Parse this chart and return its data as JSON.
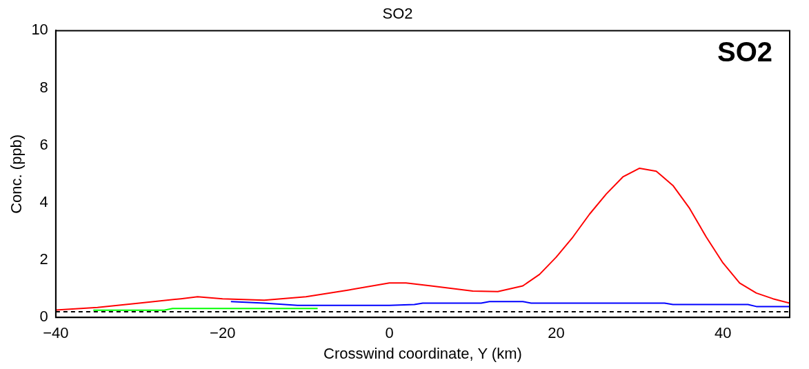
{
  "chart_data": {
    "type": "line",
    "title": "SO2",
    "xlabel": "Crosswind coordinate, Y (km)",
    "ylabel": "Conc. (ppb)",
    "annotations": [
      "SO2"
    ],
    "xlim": [
      -40,
      48
    ],
    "xticks": [
      -40,
      -20,
      0,
      20,
      40
    ],
    "ylim": [
      0,
      10
    ],
    "yticks": [
      0,
      2,
      4,
      6,
      8,
      10
    ],
    "grid": false,
    "legend": false,
    "marker": "none",
    "ref_lines": [
      {
        "axis": "y",
        "value": 0.2,
        "color": "#000000",
        "line_style": "dashed"
      }
    ],
    "series": [
      {
        "color": "#ff0000",
        "x": [
          -40,
          -35,
          -30,
          -25,
          -23,
          -20,
          -15,
          -10,
          -5,
          0,
          2,
          5,
          10,
          13,
          16,
          18,
          20,
          22,
          24,
          26,
          28,
          30,
          32,
          34,
          36,
          38,
          40,
          42,
          44,
          46,
          48
        ],
        "values": [
          0.26,
          0.35,
          0.5,
          0.65,
          0.72,
          0.65,
          0.6,
          0.72,
          0.95,
          1.2,
          1.2,
          1.1,
          0.92,
          0.9,
          1.1,
          1.5,
          2.1,
          2.8,
          3.6,
          4.3,
          4.9,
          5.2,
          5.1,
          4.6,
          3.8,
          2.8,
          1.9,
          1.2,
          0.85,
          0.65,
          0.5
        ]
      },
      {
        "color": "#0000ff",
        "x": [
          -19,
          -15,
          -11,
          0,
          3,
          4,
          11,
          12,
          16,
          17,
          33,
          34,
          43,
          44,
          48
        ],
        "values": [
          0.55,
          0.5,
          0.42,
          0.42,
          0.45,
          0.5,
          0.5,
          0.55,
          0.55,
          0.5,
          0.5,
          0.45,
          0.45,
          0.38,
          0.38
        ]
      },
      {
        "color": "#00ff00",
        "x": [
          -35.5,
          -27,
          -26,
          -8.6
        ],
        "values": [
          0.25,
          0.25,
          0.31,
          0.31
        ]
      }
    ]
  }
}
